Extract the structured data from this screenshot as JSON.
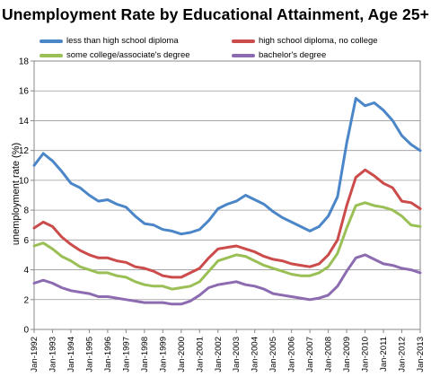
{
  "chart_data": {
    "type": "line",
    "title": "Unemployment Rate by Educational Attainment, Age 25+",
    "xlabel": "",
    "ylabel": "unemployment rate (%)",
    "ylim": [
      0,
      18
    ],
    "yticks": [
      0,
      2,
      4,
      6,
      8,
      10,
      12,
      14,
      16,
      18
    ],
    "xlim": [
      1992,
      2013
    ],
    "xtick_labels": [
      "Jan-1992",
      "Jan-1993",
      "Jan-1994",
      "Jan-1995",
      "Jan-1996",
      "Jan-1997",
      "Jan-1998",
      "Jan-1999",
      "Jan-2000",
      "Jan-2001",
      "Jan-2002",
      "Jan-2003",
      "Jan-2004",
      "Jan-2005",
      "Jan-2006",
      "Jan-2007",
      "Jan-2008",
      "Jan-2009",
      "Jan-2010",
      "Jan-2011",
      "Jan-2012",
      "Jan-2013"
    ],
    "grid": true,
    "legend_position": "top",
    "x": [
      1992,
      1992.5,
      1993,
      1993.5,
      1994,
      1994.5,
      1995,
      1995.5,
      1996,
      1996.5,
      1997,
      1997.5,
      1998,
      1998.5,
      1999,
      1999.5,
      2000,
      2000.5,
      2001,
      2001.5,
      2002,
      2002.5,
      2003,
      2003.5,
      2004,
      2004.5,
      2005,
      2005.5,
      2006,
      2006.5,
      2007,
      2007.5,
      2008,
      2008.5,
      2009,
      2009.5,
      2010,
      2010.5,
      2011,
      2011.5,
      2012,
      2012.5,
      2013
    ],
    "series": [
      {
        "name": "less than high school diploma",
        "color": "#4a86c8",
        "values": [
          11.0,
          11.8,
          11.3,
          10.6,
          9.8,
          9.5,
          9.0,
          8.6,
          8.7,
          8.4,
          8.2,
          7.6,
          7.1,
          7.0,
          6.7,
          6.6,
          6.4,
          6.5,
          6.7,
          7.3,
          8.1,
          8.4,
          8.6,
          9.0,
          8.7,
          8.4,
          7.9,
          7.5,
          7.2,
          6.9,
          6.6,
          6.9,
          7.6,
          8.9,
          12.5,
          15.5,
          15.0,
          15.2,
          14.7,
          14.0,
          13.0,
          12.4,
          12.0
        ]
      },
      {
        "name": "high school diploma, no college",
        "color": "#cc4b4b",
        "values": [
          6.8,
          7.2,
          6.9,
          6.2,
          5.7,
          5.3,
          5.0,
          4.8,
          4.8,
          4.6,
          4.5,
          4.2,
          4.1,
          3.9,
          3.6,
          3.5,
          3.5,
          3.8,
          4.1,
          4.8,
          5.4,
          5.5,
          5.6,
          5.4,
          5.2,
          4.9,
          4.7,
          4.6,
          4.4,
          4.3,
          4.2,
          4.4,
          5.0,
          6.0,
          8.3,
          10.2,
          10.7,
          10.3,
          9.8,
          9.5,
          8.6,
          8.5,
          8.1
        ]
      },
      {
        "name": "some college/associate's degree",
        "color": "#99bf55",
        "values": [
          5.6,
          5.8,
          5.4,
          4.9,
          4.6,
          4.2,
          4.0,
          3.8,
          3.8,
          3.6,
          3.5,
          3.2,
          3.0,
          2.9,
          2.9,
          2.7,
          2.8,
          2.9,
          3.2,
          3.9,
          4.6,
          4.8,
          5.0,
          4.9,
          4.6,
          4.3,
          4.1,
          3.9,
          3.7,
          3.6,
          3.6,
          3.8,
          4.2,
          5.1,
          6.8,
          8.3,
          8.5,
          8.3,
          8.2,
          8.0,
          7.6,
          7.0,
          6.9
        ]
      },
      {
        "name": "bachelor's degree",
        "color": "#8c6bb1",
        "values": [
          3.1,
          3.3,
          3.1,
          2.8,
          2.6,
          2.5,
          2.4,
          2.2,
          2.2,
          2.1,
          2.0,
          1.9,
          1.8,
          1.8,
          1.8,
          1.7,
          1.7,
          1.9,
          2.3,
          2.8,
          3.0,
          3.1,
          3.2,
          3.0,
          2.9,
          2.7,
          2.4,
          2.3,
          2.2,
          2.1,
          2.0,
          2.1,
          2.3,
          2.9,
          3.9,
          4.8,
          5.0,
          4.7,
          4.4,
          4.3,
          4.1,
          4.0,
          3.8
        ]
      }
    ]
  }
}
